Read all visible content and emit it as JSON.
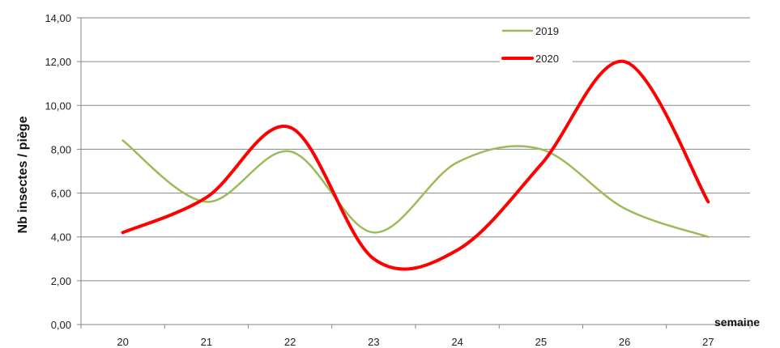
{
  "chart_data": {
    "type": "line",
    "title": "",
    "xlabel": "semaine",
    "ylabel": "Nb insectes / piège",
    "x": [
      20,
      21,
      22,
      23,
      24,
      25,
      26,
      27
    ],
    "ylim": [
      0,
      14
    ],
    "yticks": [
      "0,00",
      "2,00",
      "4,00",
      "6,00",
      "8,00",
      "10,00",
      "12,00",
      "14,00"
    ],
    "xticks": [
      "20",
      "21",
      "22",
      "23",
      "24",
      "25",
      "26",
      "27"
    ],
    "grid": "horizontal",
    "legend": "top-right",
    "smooth": true,
    "series": [
      {
        "name": "2019",
        "color": "#9bbb59",
        "values": [
          8.4,
          5.6,
          7.9,
          4.2,
          7.4,
          8.0,
          5.3,
          4.0
        ]
      },
      {
        "name": "2020",
        "color": "#ff0000",
        "values": [
          4.2,
          5.8,
          9.0,
          3.0,
          3.4,
          7.3,
          12.0,
          5.6
        ]
      }
    ]
  }
}
